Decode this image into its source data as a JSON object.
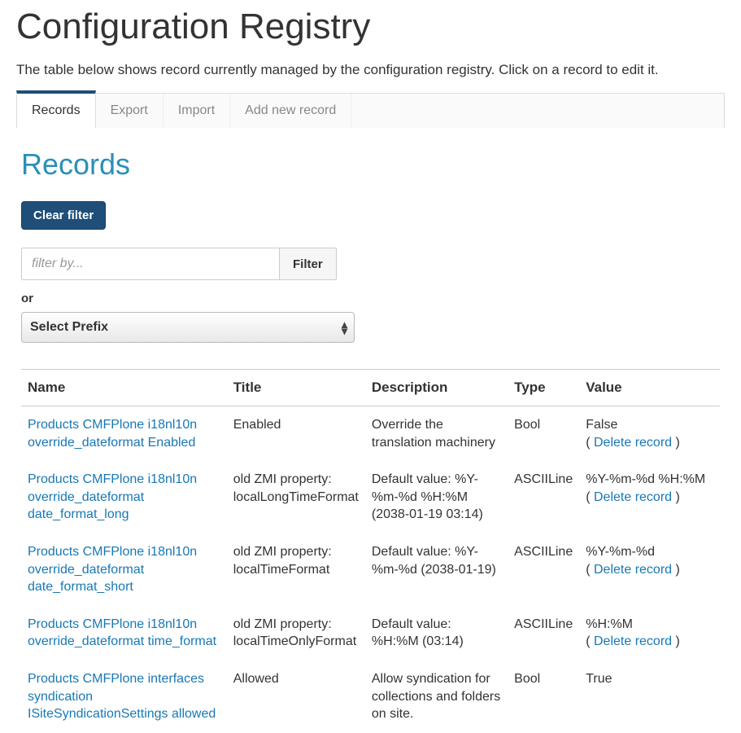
{
  "page": {
    "title": "Configuration Registry",
    "intro": "The table below shows record currently managed by the configuration registry. Click on a record to edit it."
  },
  "tabs": {
    "items": [
      {
        "label": "Records",
        "active": true
      },
      {
        "label": "Export",
        "active": false
      },
      {
        "label": "Import",
        "active": false
      },
      {
        "label": "Add new record",
        "active": false
      }
    ]
  },
  "section": {
    "title": "Records",
    "clear_filter_label": "Clear filter",
    "filter_placeholder": "filter by...",
    "filter_button_label": "Filter",
    "or_label": "or",
    "prefix_select_label": "Select Prefix"
  },
  "table": {
    "headers": {
      "name": "Name",
      "title": "Title",
      "description": "Description",
      "type": "Type",
      "value": "Value"
    },
    "delete_label": "Delete record",
    "rows": [
      {
        "name": "Products CMFPlone i18nl10n override_dateformat Enabled",
        "title": "Enabled",
        "description": "Override the translation machinery",
        "type": "Bool",
        "value": "False",
        "has_delete": true
      },
      {
        "name": "Products CMFPlone i18nl10n override_dateformat date_format_long",
        "title": "old ZMI property: localLongTimeFormat",
        "description": "Default value: %Y-%m-%d %H:%M (2038-01-19 03:14)",
        "type": "ASCIILine",
        "value": "%Y-%m-%d %H:%M",
        "has_delete": true
      },
      {
        "name": "Products CMFPlone i18nl10n override_dateformat date_format_short",
        "title": "old ZMI property: localTimeFormat",
        "description": "Default value: %Y-%m-%d (2038-01-19)",
        "type": "ASCIILine",
        "value": "%Y-%m-%d",
        "has_delete": true
      },
      {
        "name": "Products CMFPlone i18nl10n override_dateformat time_format",
        "title": "old ZMI property: localTimeOnlyFormat",
        "description": "Default value: %H:%M (03:14)",
        "type": "ASCIILine",
        "value": "%H:%M",
        "has_delete": true
      },
      {
        "name": "Products CMFPlone interfaces syndication ISiteSyndicationSettings allowed",
        "title": "Allowed",
        "description": "Allow syndication for collections and folders on site.",
        "type": "Bool",
        "value": "True",
        "has_delete": false
      }
    ]
  },
  "colors": {
    "primary": "#1f4e79",
    "link": "#1778b5",
    "heading": "#2a8fb8",
    "text": "#333333",
    "muted": "#888888",
    "border": "#cccccc"
  }
}
